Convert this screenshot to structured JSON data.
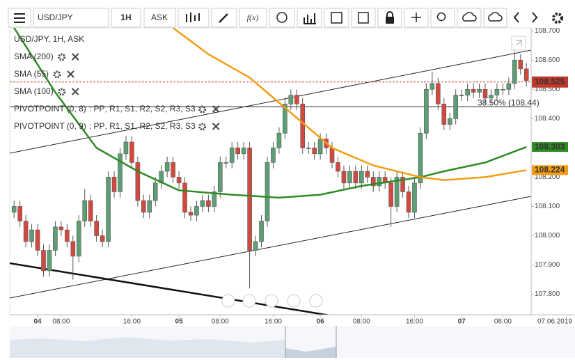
{
  "toolbar": {
    "symbol": "USD/JPY",
    "interval": "1H",
    "side": "ASK",
    "fx": "f(x)"
  },
  "chart_data": {
    "type": "candlestick",
    "title": "USD/JPY, 1H, ASK",
    "up_color": "#5d9e74",
    "down_color": "#d2493f",
    "ylim": [
      107.73,
      108.71
    ],
    "yticks": [
      {
        "value": 107.8,
        "label": "107.800"
      },
      {
        "value": 107.9,
        "label": "107.900"
      },
      {
        "value": 108.0,
        "label": "108.000"
      },
      {
        "value": 108.1,
        "label": "108.100"
      },
      {
        "value": 108.2,
        "label": "108.200"
      },
      {
        "value": 108.4,
        "label": "108.400"
      },
      {
        "value": 108.5,
        "label": "108.500"
      },
      {
        "value": 108.6,
        "label": "108.600"
      },
      {
        "value": 108.7,
        "label": "108.700"
      }
    ],
    "xticks": [
      {
        "value": 4,
        "label": "04"
      },
      {
        "value": 8,
        "label": "08:00"
      },
      {
        "value": 20,
        "label": "16:00"
      },
      {
        "value": 28,
        "label": "05"
      },
      {
        "value": 35,
        "label": "08:00"
      },
      {
        "value": 44,
        "label": "16:00"
      },
      {
        "value": 52,
        "label": "06"
      },
      {
        "value": 59,
        "label": "08:00"
      },
      {
        "value": 68,
        "label": "16:00"
      },
      {
        "value": 76,
        "label": "07"
      },
      {
        "value": 83,
        "label": "08:00"
      }
    ],
    "date_label": "07.06.2019",
    "open": [
      108.08,
      108.1,
      108.05,
      107.98,
      108.02,
      107.95,
      107.88,
      107.95,
      108.03,
      108.02,
      107.98,
      107.93,
      108.05,
      108.12,
      108.05,
      108.0,
      107.98,
      108.2,
      108.15,
      108.28,
      108.32,
      108.25,
      108.12,
      108.08,
      108.12,
      108.18,
      108.22,
      108.25,
      108.2,
      108.18,
      108.08,
      108.07,
      108.1,
      108.12,
      108.1,
      108.15,
      108.25,
      108.25,
      108.3,
      108.28,
      108.3,
      107.95,
      107.98,
      108.05,
      108.25,
      108.3,
      108.35,
      108.45,
      108.48,
      108.45,
      108.3,
      108.3,
      108.28,
      108.33,
      108.3,
      108.25,
      108.22,
      108.18,
      108.22,
      108.18,
      108.22,
      108.2,
      108.17,
      108.2,
      108.18,
      108.1,
      108.2,
      108.15,
      108.08,
      108.18,
      108.35,
      108.5,
      108.52,
      108.45,
      108.38,
      108.4,
      108.48,
      108.48,
      108.5,
      108.49,
      108.5,
      108.47,
      108.48,
      108.5,
      108.5,
      108.52,
      108.6,
      108.57
    ],
    "high": [
      108.12,
      108.12,
      108.07,
      108.04,
      108.04,
      107.97,
      107.97,
      108.05,
      108.05,
      108.04,
      108.0,
      108.07,
      108.16,
      108.14,
      108.07,
      108.02,
      108.22,
      108.22,
      108.3,
      108.34,
      108.34,
      108.27,
      108.14,
      108.14,
      108.2,
      108.24,
      108.27,
      108.27,
      108.22,
      108.2,
      108.1,
      108.12,
      108.14,
      108.14,
      108.17,
      108.27,
      108.27,
      108.32,
      108.32,
      108.32,
      108.32,
      108.0,
      108.07,
      108.27,
      108.32,
      108.37,
      108.47,
      108.5,
      108.5,
      108.47,
      108.32,
      108.32,
      108.35,
      108.35,
      108.32,
      108.27,
      108.24,
      108.24,
      108.24,
      108.24,
      108.24,
      108.22,
      108.22,
      108.22,
      108.2,
      108.22,
      108.22,
      108.17,
      108.2,
      108.37,
      108.52,
      108.56,
      108.54,
      108.47,
      108.42,
      108.5,
      108.5,
      108.52,
      108.52,
      108.52,
      108.52,
      108.5,
      108.52,
      108.52,
      108.54,
      108.63,
      108.62,
      108.59
    ],
    "low": [
      108.06,
      108.03,
      107.96,
      107.96,
      107.93,
      107.86,
      107.86,
      107.93,
      108.0,
      107.96,
      107.85,
      107.91,
      108.03,
      108.03,
      107.98,
      107.96,
      107.96,
      108.13,
      108.13,
      108.26,
      108.23,
      108.1,
      108.06,
      108.06,
      108.1,
      108.16,
      108.2,
      108.18,
      108.16,
      108.06,
      108.05,
      108.05,
      108.08,
      108.08,
      108.08,
      108.13,
      108.23,
      108.23,
      108.26,
      108.26,
      107.82,
      107.93,
      107.96,
      108.03,
      108.23,
      108.28,
      108.33,
      108.43,
      108.43,
      108.28,
      108.28,
      108.26,
      108.26,
      108.28,
      108.23,
      108.2,
      108.16,
      108.16,
      108.16,
      108.16,
      108.18,
      108.15,
      108.15,
      108.16,
      108.03,
      108.08,
      108.13,
      108.06,
      108.06,
      108.16,
      108.33,
      108.48,
      108.43,
      108.36,
      108.36,
      108.38,
      108.46,
      108.46,
      108.47,
      108.47,
      108.45,
      108.45,
      108.46,
      108.48,
      108.48,
      108.5,
      108.55,
      108.51
    ],
    "close": [
      108.1,
      108.05,
      107.98,
      108.02,
      107.95,
      107.88,
      107.95,
      108.03,
      108.02,
      107.98,
      107.93,
      108.05,
      108.12,
      108.05,
      108.0,
      107.98,
      108.2,
      108.15,
      108.28,
      108.32,
      108.25,
      108.12,
      108.08,
      108.12,
      108.18,
      108.22,
      108.25,
      108.2,
      108.18,
      108.08,
      108.07,
      108.1,
      108.12,
      108.1,
      108.15,
      108.25,
      108.25,
      108.3,
      108.28,
      108.3,
      107.95,
      107.98,
      108.05,
      108.25,
      108.3,
      108.35,
      108.45,
      108.48,
      108.45,
      108.3,
      108.3,
      108.28,
      108.33,
      108.3,
      108.25,
      108.22,
      108.18,
      108.22,
      108.18,
      108.22,
      108.2,
      108.17,
      108.2,
      108.18,
      108.1,
      108.2,
      108.15,
      108.08,
      108.18,
      108.35,
      108.5,
      108.52,
      108.45,
      108.38,
      108.4,
      108.48,
      108.48,
      108.5,
      108.49,
      108.5,
      108.47,
      108.48,
      108.5,
      108.5,
      108.52,
      108.6,
      108.57,
      108.53
    ],
    "series": [
      {
        "name": "SMA (200)",
        "color": "#b52a2a"
      },
      {
        "name": "SMA (55)",
        "color": "#2e8b22",
        "x": [
          0,
          7,
          14,
          21,
          28,
          37,
          45,
          52,
          59,
          69,
          73,
          80,
          87
        ],
        "values": [
          108.71,
          108.49,
          108.3,
          108.22,
          108.155,
          108.14,
          108.13,
          108.14,
          108.17,
          108.2,
          108.22,
          108.25,
          108.303
        ],
        "price_label": "108.303"
      },
      {
        "name": "SMA (100)",
        "color": "#f39c12",
        "x": [
          27,
          33,
          40,
          47,
          54,
          61,
          69,
          73,
          80,
          87
        ],
        "values": [
          108.71,
          108.62,
          108.54,
          108.42,
          108.3,
          108.24,
          108.2,
          108.19,
          108.2,
          108.224
        ],
        "price_label": "108.224"
      }
    ],
    "current_price": 108.525,
    "pivot_level": {
      "value": 108.44,
      "label": "38.50% (108.44)"
    },
    "pivots": [
      {
        "name": "PIVOTPOINT (0, 8)",
        "parts": [
          ": PP",
          ", R1",
          ", S1",
          ", R2",
          ", S2",
          ", R3",
          ", S3"
        ]
      },
      {
        "name": "PIVOTPOINT (0, 9)",
        "parts": [
          ": PP",
          ", R1",
          ", S1",
          ", R2",
          ", S2",
          ", R3",
          ", S3"
        ]
      }
    ],
    "pivot_colors": [
      "#c020c0",
      "#1a9a8a",
      "#8a7a20",
      "#2050c0",
      "#8040a0",
      "#8a5a20",
      "#8040a0"
    ]
  }
}
